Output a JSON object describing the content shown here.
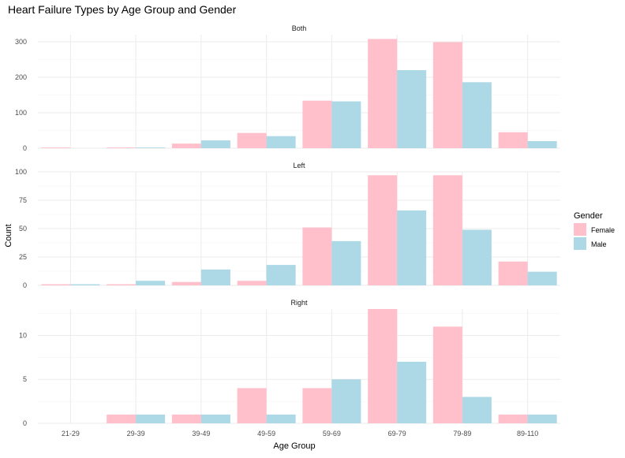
{
  "chart_data": {
    "type": "bar",
    "title": "Heart Failure Types by Age Group and Gender",
    "xlabel": "Age Group",
    "ylabel": "Count",
    "grid": true,
    "legend": {
      "title": "Gender",
      "position": "right",
      "entries": [
        {
          "name": "Female",
          "color": "#FFC0CB"
        },
        {
          "name": "Male",
          "color": "#ADD8E6"
        }
      ]
    },
    "categories": [
      "21-29",
      "29-39",
      "39-49",
      "49-59",
      "59-69",
      "69-79",
      "79-89",
      "89-110"
    ],
    "facets": [
      {
        "label": "Both",
        "ylim": [
          0,
          320
        ],
        "yticks": [
          0,
          100,
          200,
          300
        ],
        "series": [
          {
            "name": "Female",
            "values": [
              2,
              2,
              13,
              43,
              134,
              308,
              299,
              45
            ]
          },
          {
            "name": "Male",
            "values": [
              0,
              2,
              22,
              34,
              132,
              220,
              186,
              20
            ]
          }
        ]
      },
      {
        "label": "Left",
        "ylim": [
          0,
          100
        ],
        "yticks": [
          0,
          25,
          50,
          75,
          100
        ],
        "series": [
          {
            "name": "Female",
            "values": [
              1,
              1,
              3,
              4,
              51,
              97,
              97,
              21
            ]
          },
          {
            "name": "Male",
            "values": [
              1,
              4,
              14,
              18,
              39,
              66,
              49,
              12
            ]
          }
        ]
      },
      {
        "label": "Right",
        "ylim": [
          0,
          13
        ],
        "yticks": [
          0,
          5,
          10
        ],
        "series": [
          {
            "name": "Female",
            "values": [
              0,
              1,
              1,
              4,
              4,
              13,
              11,
              1
            ]
          },
          {
            "name": "Male",
            "values": [
              0,
              1,
              1,
              1,
              5,
              7,
              3,
              1
            ]
          }
        ]
      }
    ]
  }
}
